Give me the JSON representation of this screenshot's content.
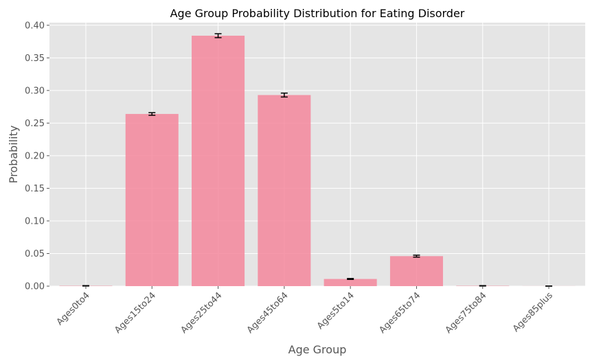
{
  "chart_data": {
    "type": "bar",
    "title": "Age Group Probability Distribution for Eating Disorder",
    "xlabel": "Age Group",
    "ylabel": "Probability",
    "categories": [
      "Ages0to4",
      "Ages15to24",
      "Ages25to44",
      "Ages45to64",
      "Ages5to14",
      "Ages65to74",
      "Ages75to84",
      "Ages85plus"
    ],
    "values": [
      0.0005,
      0.264,
      0.384,
      0.293,
      0.011,
      0.046,
      0.0005,
      0.0001
    ],
    "errors": [
      0.0003,
      0.002,
      0.003,
      0.003,
      0.0007,
      0.0015,
      0.0003,
      0.0001
    ],
    "yticks": [
      "0.00",
      "0.05",
      "0.10",
      "0.15",
      "0.20",
      "0.25",
      "0.30",
      "0.35",
      "0.40"
    ],
    "ylim": [
      0,
      0.404
    ],
    "grid": true,
    "colors": {
      "bar": "#f4879c",
      "plot_background": "#e5e5e5",
      "grid": "#ffffff",
      "error_bar": "#000000"
    }
  }
}
